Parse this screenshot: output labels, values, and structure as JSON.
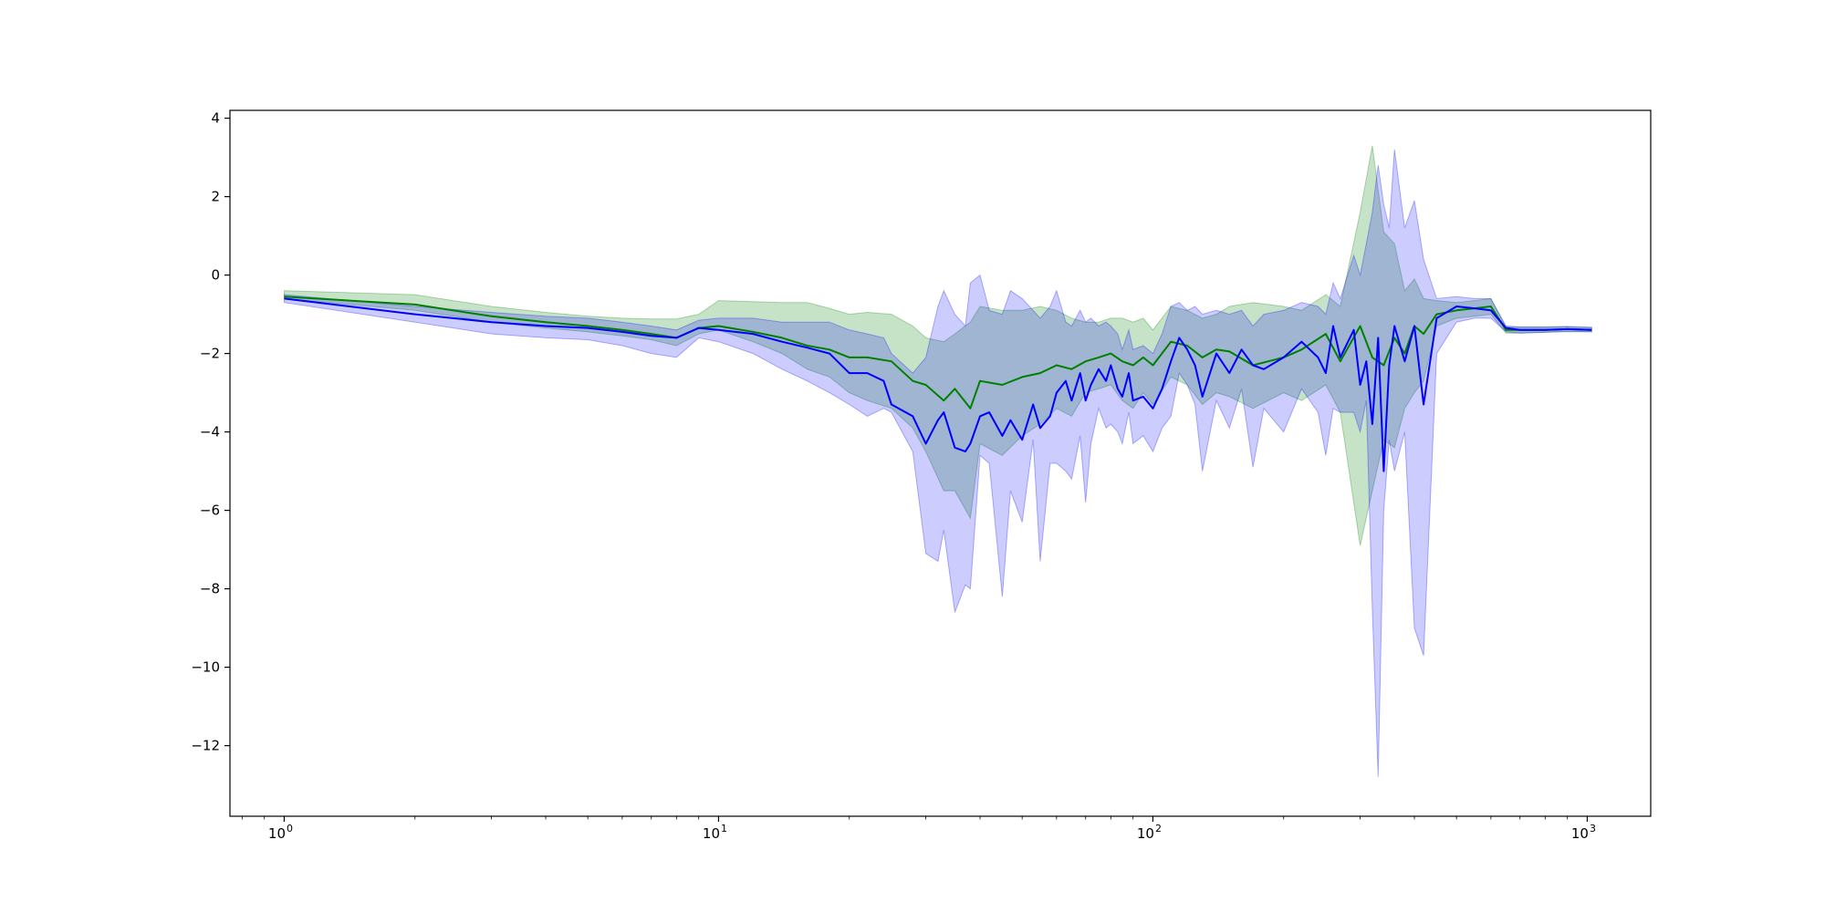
{
  "chart_data": {
    "type": "line",
    "title": "",
    "xlabel": "",
    "ylabel": "",
    "xscale": "log",
    "xlim": [
      0.75,
      1400
    ],
    "ylim": [
      -13.8,
      4.2
    ],
    "grid": false,
    "legend": "none",
    "x_ticks": [
      {
        "value": 1,
        "base": "10",
        "exp": "0"
      },
      {
        "value": 10,
        "base": "10",
        "exp": "1"
      },
      {
        "value": 100,
        "base": "10",
        "exp": "2"
      },
      {
        "value": 1000,
        "base": "10",
        "exp": "3"
      }
    ],
    "y_ticks": [
      {
        "value": 4,
        "label": "4"
      },
      {
        "value": 2,
        "label": "2"
      },
      {
        "value": 0,
        "label": "0"
      },
      {
        "value": -2,
        "label": "−2"
      },
      {
        "value": -4,
        "label": "−4"
      },
      {
        "value": -6,
        "label": "−6"
      },
      {
        "value": -8,
        "label": "−8"
      },
      {
        "value": -10,
        "label": "−10"
      },
      {
        "value": -12,
        "label": "−12"
      }
    ],
    "series": [
      {
        "color": "#008000",
        "band_color": "#008000",
        "band_opacity": 0.22,
        "x": [
          1,
          2,
          3,
          4,
          5,
          6,
          7,
          8,
          9,
          10,
          12,
          14,
          16,
          18,
          20,
          22,
          25,
          28,
          30,
          33,
          35,
          38,
          40,
          45,
          50,
          55,
          60,
          65,
          70,
          75,
          80,
          85,
          90,
          95,
          100,
          110,
          120,
          130,
          140,
          150,
          170,
          200,
          220,
          250,
          270,
          300,
          320,
          340,
          360,
          380,
          400,
          420,
          450,
          500,
          550,
          600,
          650,
          700,
          800,
          900,
          1024
        ],
        "y": [
          -0.55,
          -0.75,
          -1.05,
          -1.2,
          -1.3,
          -1.4,
          -1.5,
          -1.6,
          -1.35,
          -1.3,
          -1.45,
          -1.6,
          -1.8,
          -1.9,
          -2.1,
          -2.1,
          -2.2,
          -2.7,
          -2.8,
          -3.2,
          -2.9,
          -3.4,
          -2.7,
          -2.8,
          -2.6,
          -2.5,
          -2.3,
          -2.4,
          -2.2,
          -2.1,
          -2.0,
          -2.2,
          -2.3,
          -2.1,
          -2.3,
          -1.7,
          -1.8,
          -2.1,
          -1.9,
          -1.95,
          -2.3,
          -2.1,
          -1.9,
          -1.5,
          -2.2,
          -1.3,
          -2.1,
          -2.3,
          -1.6,
          -2.0,
          -1.3,
          -1.5,
          -1.0,
          -0.9,
          -0.85,
          -0.8,
          -1.4,
          -1.4,
          -1.4,
          -1.38,
          -1.4
        ],
        "lower": [
          -0.6,
          -0.9,
          -1.2,
          -1.35,
          -1.45,
          -1.55,
          -1.65,
          -1.8,
          -1.5,
          -1.4,
          -1.7,
          -2.0,
          -2.4,
          -2.6,
          -3.0,
          -3.2,
          -3.4,
          -3.9,
          -4.5,
          -5.5,
          -5.5,
          -6.2,
          -4.3,
          -4.6,
          -4.1,
          -3.8,
          -3.4,
          -3.6,
          -3.0,
          -2.9,
          -2.8,
          -3.2,
          -3.4,
          -3.0,
          -3.3,
          -2.6,
          -2.8,
          -3.3,
          -3.0,
          -3.1,
          -3.4,
          -3.0,
          -3.2,
          -2.8,
          -3.5,
          -6.9,
          -5.5,
          -4.2,
          -4.4,
          -3.4,
          -3.0,
          -2.7,
          -1.3,
          -1.1,
          -1.05,
          -1.0,
          -1.48,
          -1.48,
          -1.46,
          -1.44,
          -1.45
        ],
        "upper": [
          -0.4,
          -0.5,
          -0.8,
          -0.95,
          -1.05,
          -1.1,
          -1.12,
          -1.12,
          -1.0,
          -0.65,
          -0.68,
          -0.7,
          -0.7,
          -0.85,
          -1.0,
          -0.95,
          -1.0,
          -1.3,
          -1.6,
          -1.7,
          -1.5,
          -1.2,
          -0.8,
          -0.9,
          -0.9,
          -0.8,
          -0.9,
          -1.1,
          -1.2,
          -1.2,
          -1.1,
          -1.1,
          -1.2,
          -1.1,
          -1.4,
          -0.8,
          -0.9,
          -1.1,
          -1.0,
          -0.8,
          -0.7,
          -0.8,
          -0.9,
          -0.5,
          -0.8,
          1.6,
          3.3,
          1.1,
          0.8,
          -0.4,
          -0.1,
          -0.6,
          -0.65,
          -0.7,
          -0.65,
          -0.6,
          -1.33,
          -1.33,
          -1.33,
          -1.32,
          -1.34
        ]
      },
      {
        "color": "#0000ff",
        "band_color": "#0000ff",
        "band_opacity": 0.2,
        "x": [
          1,
          2,
          3,
          4,
          5,
          6,
          7,
          8,
          9,
          10,
          12,
          14,
          16,
          18,
          20,
          22,
          24,
          25,
          28,
          30,
          32,
          33,
          35,
          37,
          38,
          40,
          42,
          45,
          47,
          50,
          53,
          55,
          58,
          60,
          63,
          65,
          68,
          70,
          72,
          75,
          78,
          80,
          83,
          85,
          88,
          90,
          95,
          100,
          105,
          110,
          115,
          120,
          125,
          130,
          140,
          150,
          160,
          170,
          180,
          200,
          220,
          240,
          250,
          260,
          270,
          290,
          300,
          310,
          320,
          330,
          340,
          350,
          360,
          380,
          400,
          420,
          450,
          500,
          550,
          600,
          650,
          700,
          800,
          900,
          1024
        ],
        "y": [
          -0.6,
          -1.0,
          -1.2,
          -1.3,
          -1.35,
          -1.45,
          -1.55,
          -1.6,
          -1.35,
          -1.4,
          -1.5,
          -1.7,
          -1.85,
          -2.0,
          -2.5,
          -2.5,
          -2.7,
          -3.3,
          -3.6,
          -4.3,
          -3.7,
          -3.5,
          -4.4,
          -4.5,
          -4.3,
          -3.6,
          -3.5,
          -4.1,
          -3.7,
          -4.2,
          -3.3,
          -3.9,
          -3.6,
          -3.0,
          -2.7,
          -3.2,
          -2.5,
          -3.2,
          -2.8,
          -2.4,
          -2.7,
          -2.3,
          -2.9,
          -3.1,
          -2.5,
          -3.2,
          -3.1,
          -3.4,
          -2.9,
          -2.2,
          -1.6,
          -1.9,
          -2.3,
          -3.1,
          -2.0,
          -2.5,
          -1.9,
          -2.3,
          -2.4,
          -2.1,
          -1.7,
          -2.1,
          -2.5,
          -1.3,
          -2.1,
          -1.4,
          -2.8,
          -2.2,
          -3.8,
          -1.6,
          -5.0,
          -2.3,
          -1.3,
          -2.2,
          -1.3,
          -3.3,
          -1.1,
          -0.8,
          -0.85,
          -0.9,
          -1.35,
          -1.4,
          -1.4,
          -1.38,
          -1.4
        ],
        "lower": [
          -0.7,
          -1.2,
          -1.5,
          -1.6,
          -1.65,
          -1.8,
          -2.0,
          -2.1,
          -1.6,
          -1.7,
          -2.0,
          -2.4,
          -2.7,
          -3.0,
          -3.3,
          -3.6,
          -3.4,
          -3.5,
          -4.5,
          -7.1,
          -7.3,
          -6.5,
          -8.6,
          -7.9,
          -8.0,
          -4.6,
          -4.8,
          -8.2,
          -5.5,
          -6.3,
          -4.2,
          -7.3,
          -4.8,
          -4.8,
          -5.0,
          -5.2,
          -4.1,
          -5.8,
          -4.3,
          -3.4,
          -3.9,
          -3.8,
          -4.0,
          -4.3,
          -3.5,
          -4.3,
          -4.1,
          -4.5,
          -3.9,
          -3.6,
          -2.5,
          -2.8,
          -3.3,
          -5.0,
          -3.2,
          -3.9,
          -2.9,
          -4.9,
          -3.4,
          -4.0,
          -2.9,
          -3.5,
          -4.6,
          -3.4,
          -3.5,
          -3.5,
          -4.0,
          -3.2,
          -8.5,
          -12.8,
          -6.0,
          -4.2,
          -5.0,
          -4.0,
          -9.0,
          -9.7,
          -2.0,
          -1.2,
          -1.1,
          -1.1,
          -1.45,
          -1.48,
          -1.46,
          -1.44,
          -1.45
        ],
        "upper": [
          -0.5,
          -0.8,
          -0.95,
          -1.05,
          -1.1,
          -1.2,
          -1.3,
          -1.4,
          -1.15,
          -1.1,
          -1.1,
          -1.2,
          -1.2,
          -1.2,
          -1.4,
          -1.5,
          -1.6,
          -2.0,
          -2.5,
          -2.1,
          -0.8,
          -0.4,
          -1.0,
          -1.3,
          -0.2,
          0.0,
          -0.9,
          -1.0,
          -0.4,
          -0.6,
          -0.9,
          -1.1,
          -0.8,
          -0.4,
          -1.2,
          -1.3,
          -0.9,
          -1.2,
          -1.1,
          -1.3,
          -1.2,
          -1.3,
          -1.5,
          -1.9,
          -1.4,
          -1.9,
          -1.8,
          -2.0,
          -1.5,
          -0.8,
          -0.7,
          -0.9,
          -0.8,
          -1.0,
          -0.9,
          -1.0,
          -0.9,
          -1.3,
          -1.0,
          -0.9,
          -0.7,
          -0.8,
          -1.0,
          -0.2,
          -0.6,
          0.5,
          0.0,
          0.8,
          1.6,
          2.8,
          1.8,
          1.2,
          3.2,
          1.2,
          1.9,
          0.4,
          -0.6,
          -0.55,
          -0.6,
          -0.6,
          -1.3,
          -1.32,
          -1.32,
          -1.31,
          -1.33
        ]
      }
    ]
  }
}
